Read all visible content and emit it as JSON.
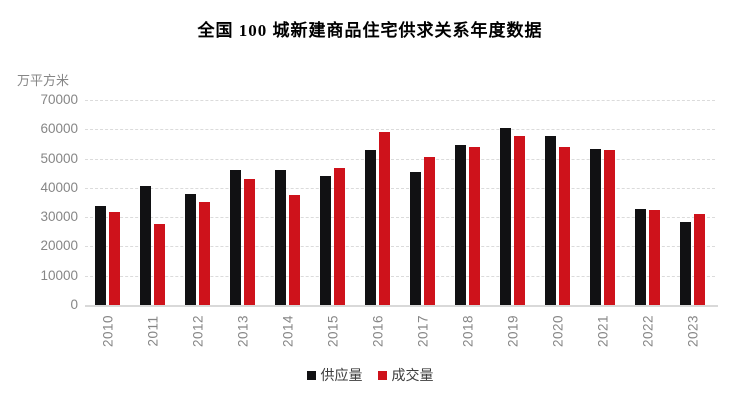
{
  "page": {
    "background": "#ffffff"
  },
  "header": {
    "title": "全国 100 城新建商品住宅供求关系年度数据"
  },
  "chart_data": {
    "type": "bar",
    "title": "全国 100 城新建商品住宅供求关系年度数据",
    "unit_label": "万平方米",
    "categories": [
      "2010",
      "2011",
      "2012",
      "2013",
      "2014",
      "2015",
      "2016",
      "2017",
      "2018",
      "2019",
      "2020",
      "2021",
      "2022",
      "2023"
    ],
    "series": [
      {
        "name": "供应量",
        "color": "#111113",
        "values": [
          33900,
          40600,
          37900,
          46200,
          46100,
          44000,
          52800,
          45400,
          54800,
          60300,
          57800,
          53300,
          32800,
          28500
        ]
      },
      {
        "name": "成交量",
        "color": "#CE121B",
        "values": [
          31600,
          27600,
          35200,
          43100,
          37400,
          46700,
          59100,
          50500,
          53900,
          57800,
          54100,
          52800,
          32300,
          31000
        ]
      }
    ],
    "ylim": [
      0,
      70000
    ],
    "yticks": [
      0,
      10000,
      20000,
      30000,
      40000,
      50000,
      60000,
      70000
    ],
    "ytick_labels": [
      "0",
      "10000",
      "20000",
      "30000",
      "40000",
      "50000",
      "60000",
      "70000"
    ],
    "grid": "horizontal-dashed",
    "legend_position": "bottom",
    "x_tick_rotation_deg": 90
  },
  "styles": {
    "grid_color": "#DBDBDB",
    "axis_color": "#D9D9D9",
    "tick_text_color": "#868686",
    "legend_text_color": "#3D3D3D",
    "supply_color": "#111113",
    "transaction_color": "#CE121B"
  }
}
